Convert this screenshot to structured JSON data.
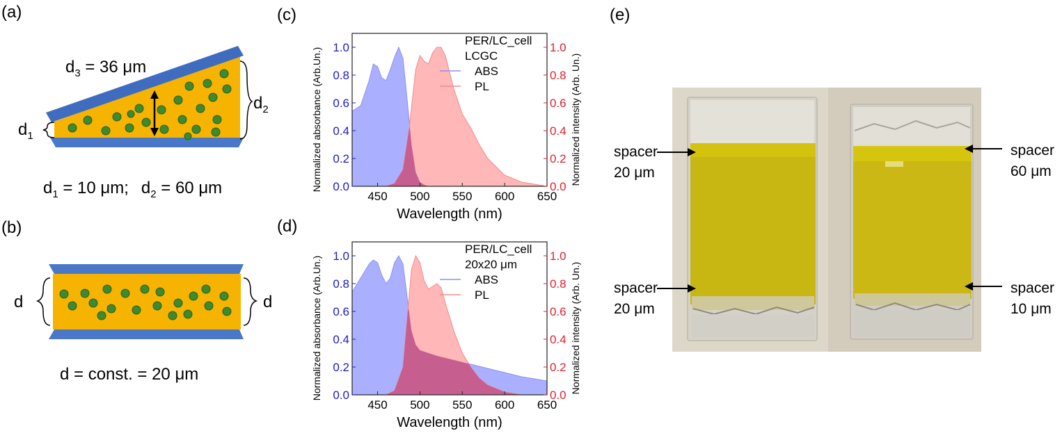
{
  "panel_labels": {
    "a": "(a)",
    "b": "(b)",
    "c": "(c)",
    "d": "(d)",
    "e": "(e)"
  },
  "diagram_a": {
    "d3_label": "d",
    "d3_sub": "3",
    "d3_value": " = 36 μm",
    "d1_label": "d",
    "d1_sub": "1",
    "d2_label": "d",
    "d2_sub": "2",
    "caption_d1": "d",
    "caption_d1_sub": "1",
    "caption_d1_value": " = 10 μm;",
    "caption_d2": "d",
    "caption_d2_sub": "2",
    "caption_d2_value": " = 60 μm"
  },
  "diagram_b": {
    "left_label": "d",
    "right_label": "d",
    "caption": "d = const. = 20 μm"
  },
  "colors": {
    "substrate": "#4a78c8",
    "lc_layer": "#f6b400",
    "particle": "#3e8a2e",
    "abs_fill": "#aab0ff",
    "pl_fill": "#ffaaaa",
    "overlap_fill": "#c0508a",
    "left_axis": "#1a1acc",
    "right_axis": "#e0202a"
  },
  "chart_data": [
    {
      "panel": "(c)",
      "type": "area",
      "legend_title": [
        "PER/LC_cell",
        "LCGC"
      ],
      "xlabel": "Wavelength (nm)",
      "ylabel_left": "Normalized absorbance (Arb.Un.)",
      "ylabel_right": "Normalized intensity (Arb. Un.)",
      "xlim": [
        420,
        650
      ],
      "ylim": [
        0,
        1.1
      ],
      "xticks": [
        "450",
        "500",
        "550",
        "600",
        "650"
      ],
      "yticks": [
        "0.0",
        "0.2",
        "0.4",
        "0.6",
        "0.8",
        "1.0"
      ],
      "series": [
        {
          "name": "ABS",
          "x": [
            420,
            430,
            440,
            445,
            450,
            455,
            460,
            465,
            470,
            475,
            480,
            485,
            490,
            495,
            500,
            505,
            510
          ],
          "y": [
            0.54,
            0.58,
            0.76,
            0.88,
            0.86,
            0.78,
            0.76,
            0.84,
            0.93,
            1.0,
            0.92,
            0.62,
            0.3,
            0.1,
            0.03,
            0.01,
            0.0
          ]
        },
        {
          "name": "PL",
          "x": [
            460,
            470,
            480,
            487,
            495,
            500,
            505,
            510,
            515,
            520,
            525,
            530,
            540,
            550,
            560,
            570,
            580,
            600,
            620,
            640,
            650
          ],
          "y": [
            0.0,
            0.02,
            0.12,
            0.4,
            0.84,
            0.94,
            0.9,
            0.88,
            0.96,
            1.0,
            1.0,
            0.94,
            0.7,
            0.52,
            0.42,
            0.3,
            0.2,
            0.08,
            0.03,
            0.01,
            0.0
          ]
        }
      ]
    },
    {
      "panel": "(d)",
      "type": "area",
      "legend_title": [
        "PER/LC_cell",
        "20x20 μm"
      ],
      "xlabel": "Wavelength (nm)",
      "ylabel_left": "Normalized absorbance (Arb.Un.)",
      "ylabel_right": "Normalized intensity (Arb. Un.)",
      "xlim": [
        420,
        650
      ],
      "ylim": [
        0,
        1.1
      ],
      "xticks": [
        "450",
        "500",
        "550",
        "600",
        "650"
      ],
      "yticks": [
        "0.0",
        "0.2",
        "0.4",
        "0.6",
        "0.8",
        "1.0"
      ],
      "series": [
        {
          "name": "ABS",
          "x": [
            420,
            430,
            440,
            445,
            450,
            455,
            460,
            465,
            470,
            475,
            480,
            485,
            490,
            495,
            500,
            510,
            520,
            540,
            560,
            580,
            600,
            620,
            650
          ],
          "y": [
            0.74,
            0.84,
            0.94,
            0.97,
            0.95,
            0.86,
            0.8,
            0.84,
            0.95,
            1.0,
            0.94,
            0.7,
            0.46,
            0.36,
            0.32,
            0.3,
            0.28,
            0.25,
            0.22,
            0.19,
            0.16,
            0.13,
            0.1
          ]
        },
        {
          "name": "PL",
          "x": [
            460,
            470,
            480,
            485,
            490,
            495,
            500,
            505,
            510,
            515,
            520,
            525,
            530,
            540,
            550,
            560,
            570,
            580,
            600,
            620
          ],
          "y": [
            0.0,
            0.03,
            0.2,
            0.55,
            0.9,
            1.0,
            0.95,
            0.82,
            0.76,
            0.78,
            0.8,
            0.77,
            0.66,
            0.46,
            0.3,
            0.2,
            0.12,
            0.07,
            0.02,
            0.0
          ]
        }
      ]
    }
  ],
  "photo": {
    "annotations": [
      {
        "line1": "spacer",
        "line2": "20 μm"
      },
      {
        "line1": "spacer",
        "line2": "60 μm"
      },
      {
        "line1": "spacer",
        "line2": "20 μm"
      },
      {
        "line1": "spacer",
        "line2": "10 μm"
      }
    ]
  }
}
